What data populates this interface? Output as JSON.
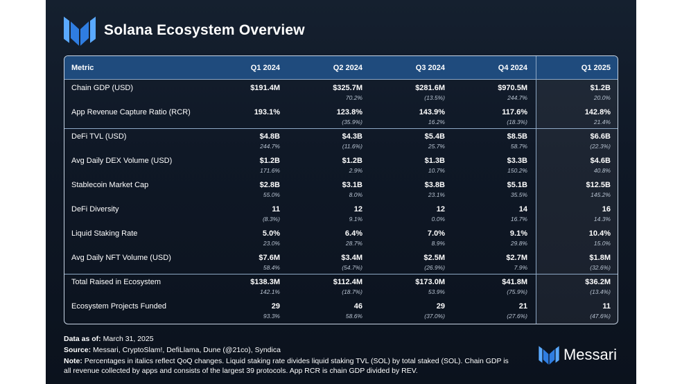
{
  "title": "Solana Ecosystem Overview",
  "brand_name": "Messari",
  "columns": [
    "Metric",
    "Q1 2024",
    "Q2 2024",
    "Q3 2024",
    "Q4 2024",
    "Q1 2025"
  ],
  "rows": [
    {
      "label": "Chain GDP (USD)",
      "values": [
        "$191.4M",
        "$325.7M",
        "$281.6M",
        "$970.5M",
        "$1.2B"
      ],
      "changes": [
        "",
        "70.2%",
        "(13.5%)",
        "244.7%",
        "20.0%"
      ]
    },
    {
      "label": "App Revenue Capture Ratio (RCR)",
      "values": [
        "193.1%",
        "123.8%",
        "143.9%",
        "117.6%",
        "142.8%"
      ],
      "changes": [
        "",
        "(35.9%)",
        "16.2%",
        "(18.3%)",
        "21.4%"
      ]
    },
    {
      "label": "DeFi TVL (USD)",
      "values": [
        "$4.8B",
        "$4.3B",
        "$5.4B",
        "$8.5B",
        "$6.6B"
      ],
      "changes": [
        "244.7%",
        "(11.6%)",
        "25.7%",
        "58.7%",
        "(22.3%)"
      ]
    },
    {
      "label": "Avg Daily DEX Volume (USD)",
      "values": [
        "$1.2B",
        "$1.2B",
        "$1.3B",
        "$3.3B",
        "$4.6B"
      ],
      "changes": [
        "171.6%",
        "2.9%",
        "10.7%",
        "150.2%",
        "40.8%"
      ]
    },
    {
      "label": "Stablecoin Market Cap",
      "values": [
        "$2.8B",
        "$3.1B",
        "$3.8B",
        "$5.1B",
        "$12.5B"
      ],
      "changes": [
        "55.0%",
        "8.0%",
        "23.1%",
        "35.5%",
        "145.2%"
      ]
    },
    {
      "label": "DeFi Diversity",
      "values": [
        "11",
        "12",
        "12",
        "14",
        "16"
      ],
      "changes": [
        "(8.3%)",
        "9.1%",
        "0.0%",
        "16.7%",
        "14.3%"
      ]
    },
    {
      "label": "Liquid Staking Rate",
      "values": [
        "5.0%",
        "6.4%",
        "7.0%",
        "9.1%",
        "10.4%"
      ],
      "changes": [
        "23.0%",
        "28.7%",
        "8.9%",
        "29.8%",
        "15.0%"
      ]
    },
    {
      "label": "Avg Daily NFT Volume (USD)",
      "values": [
        "$7.6M",
        "$3.4M",
        "$2.5M",
        "$2.7M",
        "$1.8M"
      ],
      "changes": [
        "58.4%",
        "(54.7%)",
        "(26.9%)",
        "7.9%",
        "(32.6%)"
      ]
    },
    {
      "label": "Total Raised in Ecosystem",
      "values": [
        "$138.3M",
        "$112.4M",
        "$173.0M",
        "$41.8M",
        "$36.2M"
      ],
      "changes": [
        "142.1%",
        "(18.7%)",
        "53.9%",
        "(75.9%)",
        "(13.4%)"
      ]
    },
    {
      "label": "Ecosystem Projects Funded",
      "values": [
        "29",
        "46",
        "29",
        "21",
        "11"
      ],
      "changes": [
        "93.3%",
        "58.6%",
        "(37.0%)",
        "(27.6%)",
        "(47.6%)"
      ]
    }
  ],
  "footer": {
    "data_as_of_label": "Data as of:",
    "data_as_of_value": " March 31, 2025",
    "source_label": "Source:",
    "source_value": " Messari, CryptoSlam!, DefiLlama, Dune (@21co), Syndica",
    "note_label": "Note:",
    "note_value": " Percentages in italics reflect QoQ changes. Liquid staking rate divides liquid staking TVL (SOL) by total staked (SOL). Chain GDP is all revenue collected by apps and consists of the largest 39 protocols. App RCR is chain GDP divided by REV."
  },
  "colors": {
    "background": "#0f1826",
    "header_band": "#1f4b7d",
    "border": "#c9d6e6",
    "logo_light": "#5aa9ff",
    "logo_dark": "#2f7de1"
  },
  "icons": [
    "messari-logo-icon",
    "messari-brand-icon"
  ]
}
